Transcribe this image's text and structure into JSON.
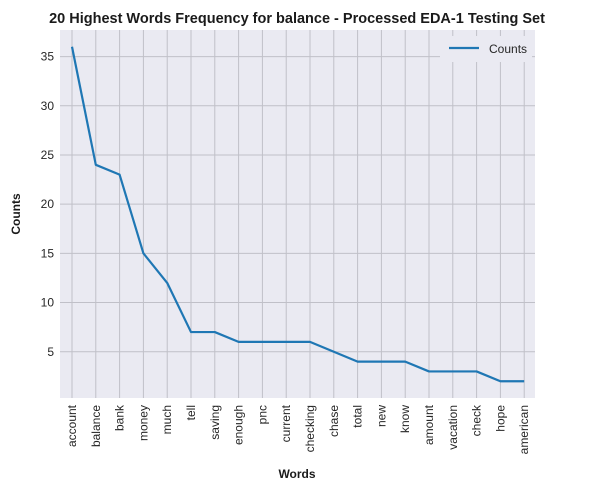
{
  "chart_data": {
    "type": "line",
    "title": "20 Highest Words Frequency for balance - Processed EDA-1 Testing Set",
    "xlabel": "Words",
    "ylabel": "Counts",
    "categories": [
      "account",
      "balance",
      "bank",
      "money",
      "much",
      "tell",
      "saving",
      "enough",
      "pnc",
      "current",
      "checking",
      "chase",
      "total",
      "new",
      "know",
      "amount",
      "vacation",
      "check",
      "hope",
      "american"
    ],
    "series": [
      {
        "name": "Counts",
        "values": [
          36,
          24,
          23,
          15,
          12,
          7,
          7,
          6,
          6,
          6,
          6,
          5,
          4,
          4,
          4,
          3,
          3,
          3,
          2,
          2
        ]
      }
    ],
    "ylim": [
      0.3,
      37.7
    ],
    "yticks": [
      5,
      10,
      15,
      20,
      25,
      30,
      35
    ],
    "grid": true,
    "legend": "top-right",
    "colors": {
      "line": "#1f77b4",
      "plot_bg": "#eaeaf2",
      "grid": "#c0c0c8"
    }
  }
}
